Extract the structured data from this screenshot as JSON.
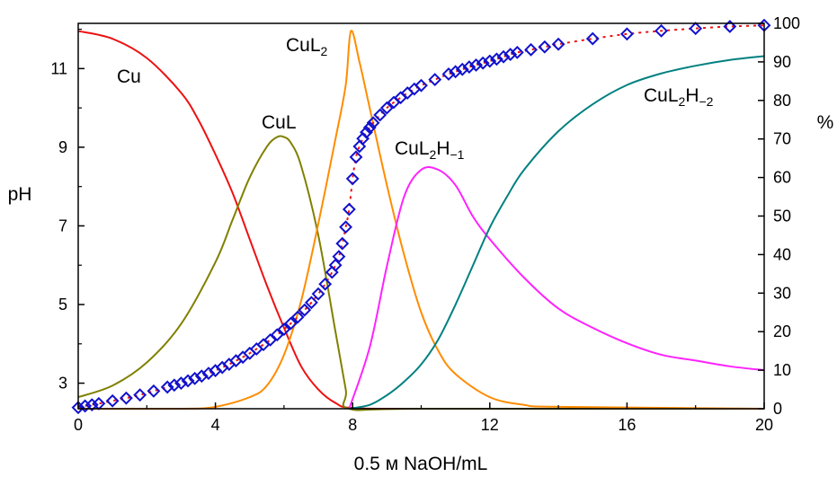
{
  "chart_data": {
    "type": "line",
    "xlabel": "0.5 м NaOH/mL",
    "ylabel_left": "pH",
    "ylabel_right": "%",
    "xlim": [
      0,
      20
    ],
    "ylim_left": [
      2.35,
      12.15
    ],
    "ylim_right": [
      0,
      100
    ],
    "x_ticks": [
      "0",
      "4",
      "8",
      "12",
      "16",
      "20"
    ],
    "y_left_ticks": [
      "3",
      "5",
      "7",
      "9",
      "11"
    ],
    "y_right_ticks": [
      "0",
      "10",
      "20",
      "30",
      "40",
      "50",
      "60",
      "70",
      "80",
      "90",
      "100"
    ],
    "grid": false,
    "species": [
      {
        "label_base": "Cu",
        "label_sub": "",
        "label_sup": "",
        "color": "#ee1111",
        "axis": "right",
        "x": [
          0,
          1,
          2,
          3,
          3.5,
          4,
          4.5,
          5,
          5.5,
          6,
          6.5,
          7,
          7.5,
          8,
          10,
          20
        ],
        "y": [
          98,
          96,
          91,
          82,
          75,
          66,
          56,
          44,
          32,
          21,
          11,
          5,
          1.5,
          0.2,
          0,
          0
        ]
      },
      {
        "label_base": "CuL",
        "label_sub": "",
        "label_sup": "",
        "color": "#808000",
        "axis": "right",
        "x": [
          0,
          1,
          2,
          3,
          4,
          4.5,
          5,
          5.5,
          5.8,
          6,
          6.2,
          6.5,
          7,
          7.5,
          7.8,
          7.9,
          10,
          20
        ],
        "y": [
          3,
          6,
          12,
          22,
          38,
          49,
          60,
          68,
          70.5,
          70.5,
          69,
          63,
          45,
          20,
          5,
          0,
          0,
          0
        ]
      },
      {
        "label_base": "CuL",
        "label_sub": "2",
        "label_sup": "",
        "color": "#ff8c00",
        "axis": "right",
        "x": [
          0,
          3,
          4,
          5,
          5.5,
          6,
          6.5,
          7,
          7.5,
          7.8,
          7.95,
          8.2,
          8.5,
          9,
          9.5,
          10,
          10.5,
          11,
          12,
          13,
          14,
          20
        ],
        "y": [
          0,
          0,
          0.5,
          3,
          6,
          14,
          28,
          48,
          70,
          84,
          98,
          90,
          78,
          58,
          40,
          25,
          15,
          9,
          3,
          1,
          0.5,
          0
        ]
      },
      {
        "label_base": "CuL",
        "label_sub": "2",
        "label_sup": "H−1",
        "color": "#ff22ff",
        "axis": "right",
        "x": [
          7.9,
          8.5,
          9,
          9.5,
          10,
          10.5,
          11,
          11.5,
          12,
          13,
          14,
          15,
          16,
          17,
          18,
          19,
          20
        ],
        "y": [
          0,
          16,
          37,
          55,
          62,
          62,
          58,
          50,
          44,
          34,
          26,
          21,
          17,
          14,
          12.5,
          11,
          10
        ]
      },
      {
        "label_base": "CuL",
        "label_sub": "2",
        "label_sup": "H−2",
        "color": "#008080",
        "axis": "right",
        "x": [
          7.9,
          8.5,
          9,
          9.5,
          10,
          10.5,
          11,
          11.5,
          12,
          12.5,
          13,
          14,
          15,
          16,
          17,
          18,
          19,
          20
        ],
        "y": [
          0,
          1,
          3.5,
          7,
          11.5,
          18,
          27,
          37,
          47,
          55,
          62,
          72,
          79,
          84,
          87,
          89,
          90.5,
          91.5
        ]
      }
    ],
    "titration_curve": {
      "name": "pH",
      "color": "#1111cc",
      "fit_color": "#ee1111",
      "axis": "left",
      "x": [
        0,
        0.2,
        0.4,
        0.6,
        1,
        1.4,
        1.8,
        2.2,
        2.6,
        2.8,
        3,
        3.2,
        3.4,
        3.6,
        3.8,
        4,
        4.2,
        4.4,
        4.6,
        4.8,
        5,
        5.2,
        5.4,
        5.6,
        5.8,
        6,
        6.2,
        6.4,
        6.6,
        6.8,
        7,
        7.2,
        7.4,
        7.5,
        7.6,
        7.7,
        7.8,
        7.9,
        8,
        8.1,
        8.2,
        8.3,
        8.4,
        8.5,
        8.6,
        8.8,
        9,
        9.2,
        9.4,
        9.6,
        9.8,
        10,
        10.4,
        10.8,
        11,
        11.2,
        11.4,
        11.6,
        11.8,
        12,
        12.2,
        12.4,
        12.6,
        12.8,
        13.2,
        13.6,
        14,
        15,
        16,
        17,
        18,
        19,
        20
      ],
      "y": [
        2.38,
        2.42,
        2.45,
        2.48,
        2.55,
        2.62,
        2.7,
        2.8,
        2.9,
        2.95,
        3.0,
        3.06,
        3.12,
        3.18,
        3.25,
        3.32,
        3.4,
        3.48,
        3.57,
        3.66,
        3.76,
        3.87,
        3.98,
        4.1,
        4.23,
        4.37,
        4.52,
        4.68,
        4.86,
        5.05,
        5.27,
        5.52,
        5.82,
        6.0,
        6.22,
        6.55,
        6.97,
        7.42,
        8.2,
        8.75,
        9.02,
        9.22,
        9.38,
        9.5,
        9.62,
        9.82,
        10.0,
        10.14,
        10.26,
        10.38,
        10.48,
        10.57,
        10.72,
        10.86,
        10.92,
        10.98,
        11.04,
        11.09,
        11.14,
        11.19,
        11.24,
        11.3,
        11.36,
        11.41,
        11.48,
        11.55,
        11.62,
        11.76,
        11.88,
        11.96,
        12.02,
        12.07,
        12.1
      ]
    }
  }
}
